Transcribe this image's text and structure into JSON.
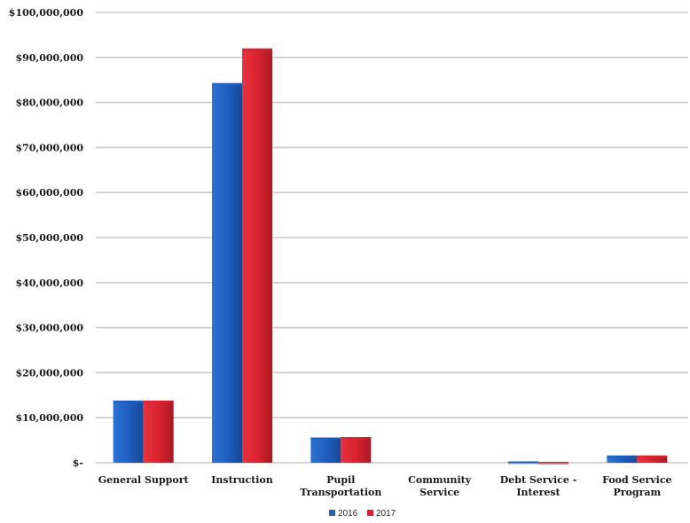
{
  "chart_data": {
    "type": "bar",
    "categories": [
      "General Support",
      "Instruction",
      "Pupil Transportation",
      "Community Service",
      "Debt Service - Interest",
      "Food Service Program"
    ],
    "category_lines": [
      [
        "General Support"
      ],
      [
        "Instruction"
      ],
      [
        "Pupil",
        "Transportation"
      ],
      [
        "Community",
        "Service"
      ],
      [
        "Debt Service -",
        "Interest"
      ],
      [
        "Food Service",
        "Program"
      ]
    ],
    "series": [
      {
        "name": "2016",
        "color": "#1f5fbf",
        "values": [
          13800000,
          84300000,
          5600000,
          0,
          300000,
          1600000
        ]
      },
      {
        "name": "2017",
        "color": "#d8232f",
        "values": [
          13800000,
          92000000,
          5700000,
          0,
          200000,
          1600000
        ]
      }
    ],
    "ylim": [
      0,
      100000000
    ],
    "yticks": [
      0,
      10000000,
      20000000,
      30000000,
      40000000,
      50000000,
      60000000,
      70000000,
      80000000,
      90000000,
      100000000
    ],
    "ytick_labels": [
      "$-",
      "$10,000,000",
      "$20,000,000",
      "$30,000,000",
      "$40,000,000",
      "$50,000,000",
      "$60,000,000",
      "$70,000,000",
      "$80,000,000",
      "$90,000,000",
      "$100,000,000"
    ],
    "title": "",
    "xlabel": "",
    "ylabel": "",
    "grid": true,
    "legend_position": "bottom-center"
  }
}
